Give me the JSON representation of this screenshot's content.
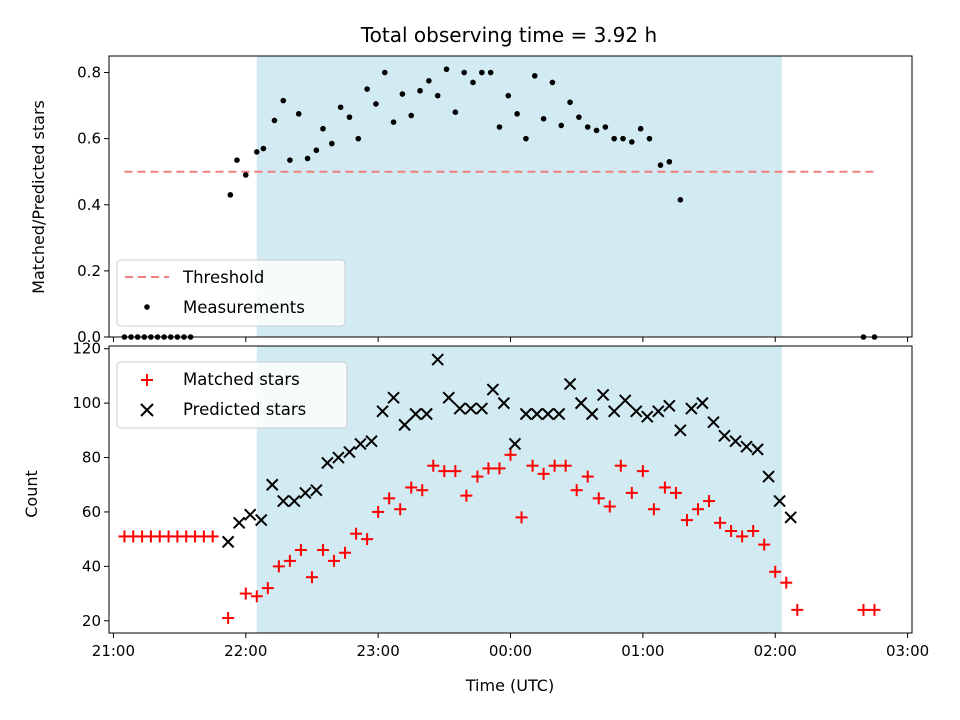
{
  "chart_data": [
    {
      "type": "scatter",
      "title": "Total observing time = 3.92 h",
      "xlabel": "",
      "ylabel": "Matched/Predicted stars",
      "xlim": [
        "20:58",
        "03:02"
      ],
      "ylim": [
        0,
        0.85
      ],
      "yticks": [
        "0.0",
        "0.2",
        "0.4",
        "0.6",
        "0.8"
      ],
      "shaded_span": [
        "22:05",
        "02:03"
      ],
      "shaded_color": "#add8e6",
      "threshold": {
        "name": "Threshold",
        "value": 0.5,
        "x_range": [
          "21:05",
          "02:45"
        ],
        "color": "#f08080",
        "style": "dashed"
      },
      "legend": {
        "position": "lower-left",
        "entries": [
          "Threshold",
          "Measurements"
        ]
      },
      "series": [
        {
          "name": "Measurements",
          "marker": "dot",
          "color": "#000000",
          "points": [
            [
              "21:05",
              0
            ],
            [
              "21:08",
              0
            ],
            [
              "21:11",
              0
            ],
            [
              "21:14",
              0
            ],
            [
              "21:17",
              0
            ],
            [
              "21:20",
              0
            ],
            [
              "21:23",
              0
            ],
            [
              "21:26",
              0
            ],
            [
              "21:29",
              0
            ],
            [
              "21:32",
              0
            ],
            [
              "21:35",
              0
            ],
            [
              "21:53",
              0.43
            ],
            [
              "21:56",
              0.535
            ],
            [
              "22:00",
              0.49
            ],
            [
              "22:05",
              0.56
            ],
            [
              "22:08",
              0.57
            ],
            [
              "22:13",
              0.655
            ],
            [
              "22:17",
              0.715
            ],
            [
              "22:20",
              0.535
            ],
            [
              "22:24",
              0.675
            ],
            [
              "22:28",
              0.54
            ],
            [
              "22:32",
              0.565
            ],
            [
              "22:35",
              0.63
            ],
            [
              "22:39",
              0.585
            ],
            [
              "22:43",
              0.695
            ],
            [
              "22:47",
              0.665
            ],
            [
              "22:51",
              0.6
            ],
            [
              "22:55",
              0.75
            ],
            [
              "22:59",
              0.705
            ],
            [
              "23:03",
              0.8
            ],
            [
              "23:07",
              0.65
            ],
            [
              "23:11",
              0.735
            ],
            [
              "23:15",
              0.67
            ],
            [
              "23:19",
              0.745
            ],
            [
              "23:23",
              0.775
            ],
            [
              "23:27",
              0.73
            ],
            [
              "23:31",
              0.81
            ],
            [
              "23:35",
              0.68
            ],
            [
              "23:39",
              0.8
            ],
            [
              "23:43",
              0.77
            ],
            [
              "23:47",
              0.8
            ],
            [
              "23:51",
              0.8
            ],
            [
              "23:55",
              0.635
            ],
            [
              "23:59",
              0.73
            ],
            [
              "00:03",
              0.675
            ],
            [
              "00:07",
              0.6
            ],
            [
              "00:11",
              0.79
            ],
            [
              "00:15",
              0.66
            ],
            [
              "00:19",
              0.77
            ],
            [
              "00:23",
              0.64
            ],
            [
              "00:27",
              0.71
            ],
            [
              "00:31",
              0.665
            ],
            [
              "00:35",
              0.635
            ],
            [
              "00:39",
              0.625
            ],
            [
              "00:43",
              0.635
            ],
            [
              "00:47",
              0.6
            ],
            [
              "00:51",
              0.6
            ],
            [
              "00:55",
              0.59
            ],
            [
              "00:59",
              0.63
            ],
            [
              "01:03",
              0.6
            ],
            [
              "01:08",
              0.52
            ],
            [
              "01:12",
              0.53
            ],
            [
              "01:17",
              0.415
            ],
            [
              "02:40",
              0
            ],
            [
              "02:45",
              0
            ]
          ]
        }
      ]
    },
    {
      "type": "scatter",
      "title": "",
      "xlabel": "Time (UTC)",
      "ylabel": "Count",
      "xlim": [
        "20:58",
        "03:02"
      ],
      "ylim": [
        15.5,
        121
      ],
      "xticks": [
        "21:00",
        "22:00",
        "23:00",
        "00:00",
        "01:00",
        "02:00",
        "03:00"
      ],
      "yticks": [
        "20",
        "40",
        "60",
        "80",
        "100",
        "120"
      ],
      "shaded_span": [
        "22:05",
        "02:03"
      ],
      "shaded_color": "#add8e6",
      "legend": {
        "position": "upper-left",
        "entries": [
          "Matched stars",
          "Predicted stars"
        ]
      },
      "series": [
        {
          "name": "Matched stars",
          "marker": "plus",
          "color": "#ff0000",
          "points": [
            [
              "21:05",
              51
            ],
            [
              "21:09",
              51
            ],
            [
              "21:13",
              51
            ],
            [
              "21:17",
              51
            ],
            [
              "21:21",
              51
            ],
            [
              "21:25",
              51
            ],
            [
              "21:29",
              51
            ],
            [
              "21:33",
              51
            ],
            [
              "21:37",
              51
            ],
            [
              "21:41",
              51
            ],
            [
              "21:45",
              51
            ],
            [
              "21:52",
              21
            ],
            [
              "22:00",
              30
            ],
            [
              "22:05",
              29
            ],
            [
              "22:10",
              32
            ],
            [
              "22:15",
              40
            ],
            [
              "22:20",
              42
            ],
            [
              "22:25",
              46
            ],
            [
              "22:30",
              36
            ],
            [
              "22:35",
              46
            ],
            [
              "22:40",
              42
            ],
            [
              "22:45",
              45
            ],
            [
              "22:50",
              52
            ],
            [
              "22:55",
              50
            ],
            [
              "23:00",
              60
            ],
            [
              "23:05",
              65
            ],
            [
              "23:10",
              61
            ],
            [
              "23:15",
              69
            ],
            [
              "23:20",
              68
            ],
            [
              "23:25",
              77
            ],
            [
              "23:30",
              75
            ],
            [
              "23:35",
              75
            ],
            [
              "23:40",
              66
            ],
            [
              "23:45",
              73
            ],
            [
              "23:50",
              76
            ],
            [
              "23:55",
              76
            ],
            [
              "00:00",
              81
            ],
            [
              "00:05",
              58
            ],
            [
              "00:10",
              77
            ],
            [
              "00:15",
              74
            ],
            [
              "00:20",
              77
            ],
            [
              "00:25",
              77
            ],
            [
              "00:30",
              68
            ],
            [
              "00:35",
              73
            ],
            [
              "00:40",
              65
            ],
            [
              "00:45",
              62
            ],
            [
              "00:50",
              77
            ],
            [
              "00:55",
              67
            ],
            [
              "01:00",
              75
            ],
            [
              "01:05",
              61
            ],
            [
              "01:10",
              69
            ],
            [
              "01:15",
              67
            ],
            [
              "01:20",
              57
            ],
            [
              "01:25",
              61
            ],
            [
              "01:30",
              64
            ],
            [
              "01:35",
              56
            ],
            [
              "01:40",
              53
            ],
            [
              "01:45",
              51
            ],
            [
              "01:50",
              53
            ],
            [
              "01:55",
              48
            ],
            [
              "02:00",
              38
            ],
            [
              "02:05",
              34
            ],
            [
              "02:10",
              24
            ],
            [
              "02:40",
              24
            ],
            [
              "02:45",
              24
            ]
          ]
        },
        {
          "name": "Predicted stars",
          "marker": "x",
          "color": "#000000",
          "points": [
            [
              "21:52",
              49
            ],
            [
              "21:57",
              56
            ],
            [
              "22:02",
              59
            ],
            [
              "22:07",
              57
            ],
            [
              "22:12",
              70
            ],
            [
              "22:17",
              64
            ],
            [
              "22:22",
              64
            ],
            [
              "22:27",
              67
            ],
            [
              "22:32",
              68
            ],
            [
              "22:37",
              78
            ],
            [
              "22:42",
              80
            ],
            [
              "22:47",
              82
            ],
            [
              "22:52",
              85
            ],
            [
              "22:57",
              86
            ],
            [
              "23:02",
              97
            ],
            [
              "23:07",
              102
            ],
            [
              "23:12",
              92
            ],
            [
              "23:17",
              96
            ],
            [
              "23:22",
              96
            ],
            [
              "23:27",
              116
            ],
            [
              "23:32",
              102
            ],
            [
              "23:37",
              98
            ],
            [
              "23:42",
              98
            ],
            [
              "23:47",
              98
            ],
            [
              "23:52",
              105
            ],
            [
              "23:57",
              100
            ],
            [
              "00:02",
              85
            ],
            [
              "00:07",
              96
            ],
            [
              "00:12",
              96
            ],
            [
              "00:17",
              96
            ],
            [
              "00:22",
              96
            ],
            [
              "00:27",
              107
            ],
            [
              "00:32",
              100
            ],
            [
              "00:37",
              96
            ],
            [
              "00:42",
              103
            ],
            [
              "00:47",
              97
            ],
            [
              "00:52",
              101
            ],
            [
              "00:57",
              97
            ],
            [
              "01:02",
              95
            ],
            [
              "01:07",
              97
            ],
            [
              "01:12",
              99
            ],
            [
              "01:17",
              90
            ],
            [
              "01:22",
              98
            ],
            [
              "01:27",
              100
            ],
            [
              "01:32",
              93
            ],
            [
              "01:37",
              88
            ],
            [
              "01:42",
              86
            ],
            [
              "01:47",
              84
            ],
            [
              "01:52",
              83
            ],
            [
              "01:57",
              73
            ],
            [
              "02:02",
              64
            ],
            [
              "02:07",
              58
            ]
          ]
        }
      ]
    }
  ]
}
